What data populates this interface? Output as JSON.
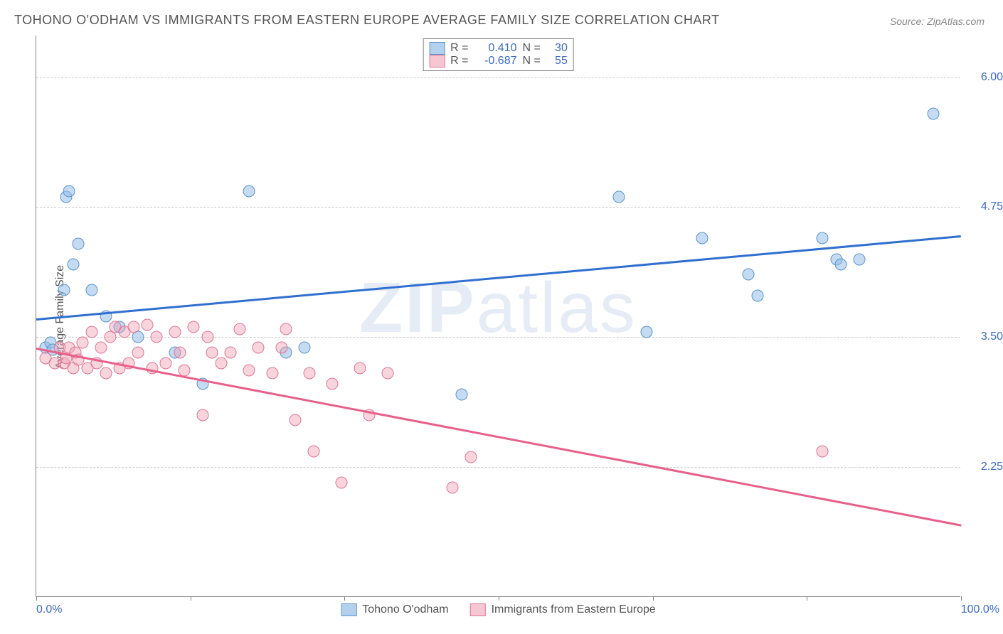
{
  "title": "TOHONO O'ODHAM VS IMMIGRANTS FROM EASTERN EUROPE AVERAGE FAMILY SIZE CORRELATION CHART",
  "source_prefix": "Source: ",
  "source_name": "ZipAtlas.com",
  "watermark_bold": "ZIP",
  "watermark_light": "atlas",
  "y_axis_label": "Average Family Size",
  "chart": {
    "type": "scatter",
    "xlim": [
      0,
      100
    ],
    "ylim": [
      1.0,
      6.4
    ],
    "y_ticks": [
      2.25,
      3.5,
      4.75,
      6.0
    ],
    "y_tick_labels": [
      "2.25",
      "3.50",
      "4.75",
      "6.00"
    ],
    "x_tick_labels": [
      "0.0%",
      "100.0%"
    ],
    "x_minor_ticks": [
      0,
      16.67,
      33.33,
      50,
      66.67,
      83.33,
      100
    ],
    "grid_color": "#cccccc",
    "axis_color": "#808080",
    "background_color": "#ffffff",
    "marker_radius": 8.5,
    "series": [
      {
        "name": "Tohono O'odham",
        "color_fill": "rgba(147,189,230,0.55)",
        "color_stroke": "#5a94cf",
        "trend_color": "#2f6fd0",
        "R": "0.410",
        "N": "30",
        "trend": {
          "x1": 0,
          "y1": 3.68,
          "x2": 100,
          "y2": 4.48
        },
        "points": [
          {
            "x": 1,
            "y": 3.4
          },
          {
            "x": 1.5,
            "y": 3.45
          },
          {
            "x": 1.8,
            "y": 3.38
          },
          {
            "x": 3,
            "y": 3.95
          },
          {
            "x": 3.2,
            "y": 4.85
          },
          {
            "x": 3.5,
            "y": 4.9
          },
          {
            "x": 4,
            "y": 4.2
          },
          {
            "x": 4.5,
            "y": 4.4
          },
          {
            "x": 6,
            "y": 3.95
          },
          {
            "x": 7.5,
            "y": 3.7
          },
          {
            "x": 9,
            "y": 3.6
          },
          {
            "x": 11,
            "y": 3.5
          },
          {
            "x": 15,
            "y": 3.35
          },
          {
            "x": 18,
            "y": 3.05
          },
          {
            "x": 23,
            "y": 4.9
          },
          {
            "x": 27,
            "y": 3.35
          },
          {
            "x": 29,
            "y": 3.4
          },
          {
            "x": 46,
            "y": 2.95
          },
          {
            "x": 63,
            "y": 4.85
          },
          {
            "x": 66,
            "y": 3.55
          },
          {
            "x": 72,
            "y": 4.45
          },
          {
            "x": 77,
            "y": 4.1
          },
          {
            "x": 78,
            "y": 3.9
          },
          {
            "x": 85,
            "y": 4.45
          },
          {
            "x": 86.5,
            "y": 4.25
          },
          {
            "x": 87,
            "y": 4.2
          },
          {
            "x": 89,
            "y": 4.25
          },
          {
            "x": 97,
            "y": 5.65
          }
        ]
      },
      {
        "name": "Immigrants from Eastern Europe",
        "color_fill": "rgba(240,160,180,0.45)",
        "color_stroke": "#e07595",
        "trend_color": "#e85f8a",
        "R": "-0.687",
        "N": "55",
        "trend": {
          "x1": 0,
          "y1": 3.4,
          "x2": 100,
          "y2": 1.7
        },
        "points": [
          {
            "x": 1,
            "y": 3.3
          },
          {
            "x": 2,
            "y": 3.25
          },
          {
            "x": 2.5,
            "y": 3.4
          },
          {
            "x": 3,
            "y": 3.25
          },
          {
            "x": 3.2,
            "y": 3.3
          },
          {
            "x": 3.5,
            "y": 3.4
          },
          {
            "x": 4,
            "y": 3.2
          },
          {
            "x": 4.2,
            "y": 3.35
          },
          {
            "x": 4.5,
            "y": 3.28
          },
          {
            "x": 5,
            "y": 3.45
          },
          {
            "x": 5.5,
            "y": 3.2
          },
          {
            "x": 6,
            "y": 3.55
          },
          {
            "x": 6.5,
            "y": 3.25
          },
          {
            "x": 7,
            "y": 3.4
          },
          {
            "x": 7.5,
            "y": 3.15
          },
          {
            "x": 8,
            "y": 3.5
          },
          {
            "x": 8.5,
            "y": 3.6
          },
          {
            "x": 9,
            "y": 3.2
          },
          {
            "x": 9.5,
            "y": 3.55
          },
          {
            "x": 10,
            "y": 3.25
          },
          {
            "x": 10.5,
            "y": 3.6
          },
          {
            "x": 11,
            "y": 3.35
          },
          {
            "x": 12,
            "y": 3.62
          },
          {
            "x": 12.5,
            "y": 3.2
          },
          {
            "x": 13,
            "y": 3.5
          },
          {
            "x": 14,
            "y": 3.25
          },
          {
            "x": 15,
            "y": 3.55
          },
          {
            "x": 15.5,
            "y": 3.35
          },
          {
            "x": 16,
            "y": 3.18
          },
          {
            "x": 17,
            "y": 3.6
          },
          {
            "x": 18,
            "y": 2.75
          },
          {
            "x": 18.5,
            "y": 3.5
          },
          {
            "x": 19,
            "y": 3.35
          },
          {
            "x": 20,
            "y": 3.25
          },
          {
            "x": 21,
            "y": 3.35
          },
          {
            "x": 22,
            "y": 3.58
          },
          {
            "x": 23,
            "y": 3.18
          },
          {
            "x": 24,
            "y": 3.4
          },
          {
            "x": 25.5,
            "y": 3.15
          },
          {
            "x": 26.5,
            "y": 3.4
          },
          {
            "x": 27,
            "y": 3.58
          },
          {
            "x": 28,
            "y": 2.7
          },
          {
            "x": 29.5,
            "y": 3.15
          },
          {
            "x": 30,
            "y": 2.4
          },
          {
            "x": 32,
            "y": 3.05
          },
          {
            "x": 33,
            "y": 2.1
          },
          {
            "x": 35,
            "y": 3.2
          },
          {
            "x": 36,
            "y": 2.75
          },
          {
            "x": 38,
            "y": 3.15
          },
          {
            "x": 45,
            "y": 2.05
          },
          {
            "x": 47,
            "y": 2.35
          },
          {
            "x": 85,
            "y": 2.4
          }
        ]
      }
    ]
  },
  "legend_top": {
    "R_label": "R =",
    "N_label": "N ="
  }
}
